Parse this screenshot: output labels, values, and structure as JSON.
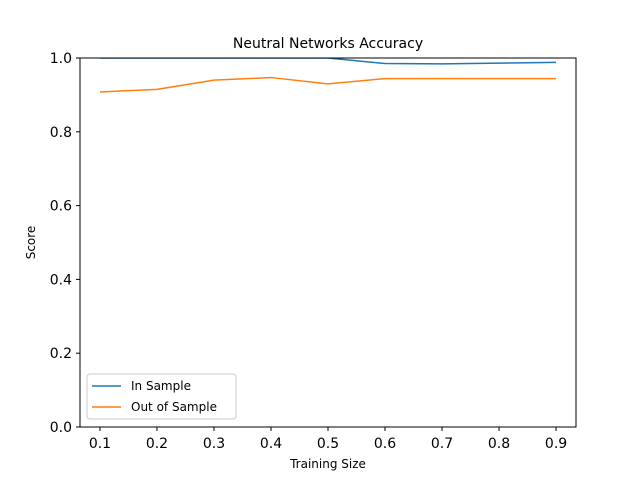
{
  "chart_data": {
    "type": "line",
    "title": "Neutral Networks Accuracy",
    "xlabel": "Training Size",
    "ylabel": "Score",
    "x": [
      0.1,
      0.2,
      0.3,
      0.4,
      0.5,
      0.6,
      0.7,
      0.8,
      0.9
    ],
    "xlim": [
      0.065,
      0.935
    ],
    "ylim": [
      0.0,
      1.0
    ],
    "xticks": [
      "0.1",
      "0.2",
      "0.3",
      "0.4",
      "0.5",
      "0.6",
      "0.7",
      "0.8",
      "0.9"
    ],
    "yticks": [
      "0.0",
      "0.2",
      "0.4",
      "0.6",
      "0.8",
      "1.0"
    ],
    "grid": false,
    "legend_position": "lower-left",
    "series": [
      {
        "name": "In Sample",
        "color": "#1f77b4",
        "values": [
          1.0,
          1.0,
          1.0,
          1.0,
          1.0,
          0.985,
          0.984,
          0.986,
          0.988
        ]
      },
      {
        "name": "Out of Sample",
        "color": "#ff7f0e",
        "values": [
          0.908,
          0.915,
          0.94,
          0.947,
          0.93,
          0.944,
          0.944,
          0.944,
          0.944
        ]
      }
    ]
  }
}
